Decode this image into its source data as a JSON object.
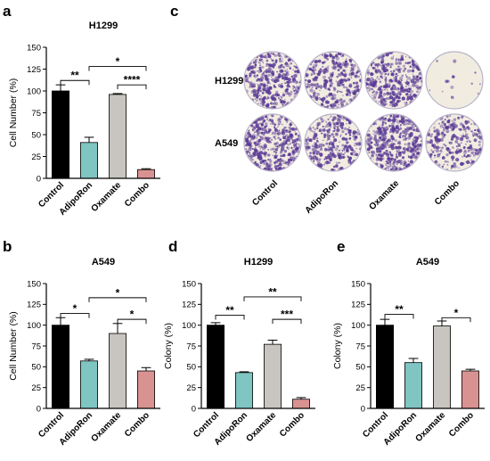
{
  "colors": {
    "control": "#000000",
    "adiporon": "#7fc5c2",
    "oxamate": "#c8c5c0",
    "combo": "#d99292",
    "stain": "#5a3a96",
    "plate_bg": "#f1ece0"
  },
  "colony_panel": {
    "letter": "c",
    "rows": [
      "H1299",
      "A549"
    ],
    "columns": [
      "Control",
      "AdipoRon",
      "Oxamate",
      "Combo"
    ],
    "density": [
      [
        0.55,
        0.45,
        0.5,
        0.02
      ],
      [
        0.6,
        0.45,
        0.6,
        0.35
      ]
    ]
  },
  "chart_data": [
    {
      "type": "bar",
      "letter": "a",
      "title": "H1299",
      "ylabel": "Cell Number (%)",
      "categories": [
        "Control",
        "AdipoRon",
        "Oxamate",
        "Combo"
      ],
      "values": [
        100,
        41,
        96,
        10
      ],
      "errors": [
        7,
        6,
        1,
        1
      ],
      "ylim": [
        0,
        150
      ],
      "yticks": [
        0,
        25,
        50,
        75,
        100,
        125,
        150
      ],
      "significance": [
        {
          "from": 0,
          "to": 1,
          "level": 112,
          "label": "**"
        },
        {
          "from": 2,
          "to": 3,
          "level": 107,
          "label": "****"
        },
        {
          "from": 1,
          "to": 3,
          "level": 128,
          "label": "*"
        }
      ]
    },
    {
      "type": "bar",
      "letter": "b",
      "title": "A549",
      "ylabel": "Cell Number (%)",
      "categories": [
        "Control",
        "AdipoRon",
        "Oxamate",
        "Combo"
      ],
      "values": [
        100,
        57,
        90,
        45
      ],
      "errors": [
        9,
        2,
        12,
        4
      ],
      "ylim": [
        0,
        150
      ],
      "yticks": [
        0,
        25,
        50,
        75,
        100,
        125,
        150
      ],
      "significance": [
        {
          "from": 0,
          "to": 1,
          "level": 114,
          "label": "*"
        },
        {
          "from": 2,
          "to": 3,
          "level": 107,
          "label": "*"
        },
        {
          "from": 1,
          "to": 3,
          "level": 133,
          "label": "*"
        }
      ]
    },
    {
      "type": "bar",
      "letter": "d",
      "title": "H1299",
      "ylabel": "Colony (%)",
      "categories": [
        "Control",
        "AdipoRon",
        "Oxamate",
        "Combo"
      ],
      "values": [
        100,
        43,
        77,
        11
      ],
      "errors": [
        3,
        1,
        5,
        2
      ],
      "ylim": [
        0,
        150
      ],
      "yticks": [
        0,
        25,
        50,
        75,
        100,
        125,
        150
      ],
      "significance": [
        {
          "from": 0,
          "to": 1,
          "level": 112,
          "label": "**"
        },
        {
          "from": 2,
          "to": 3,
          "level": 107,
          "label": "***"
        },
        {
          "from": 1,
          "to": 3,
          "level": 134,
          "label": "**"
        }
      ]
    },
    {
      "type": "bar",
      "letter": "e",
      "title": "A549",
      "ylabel": "Colony (%)",
      "categories": [
        "Control",
        "AdipoRon",
        "Oxamate",
        "Combo"
      ],
      "values": [
        100,
        55,
        99,
        45
      ],
      "errors": [
        7,
        5,
        6,
        2
      ],
      "ylim": [
        0,
        150
      ],
      "yticks": [
        0,
        25,
        50,
        75,
        100,
        125,
        150
      ],
      "significance": [
        {
          "from": 0,
          "to": 1,
          "level": 113,
          "label": "**"
        },
        {
          "from": 2,
          "to": 3,
          "level": 109,
          "label": "*"
        }
      ]
    }
  ]
}
